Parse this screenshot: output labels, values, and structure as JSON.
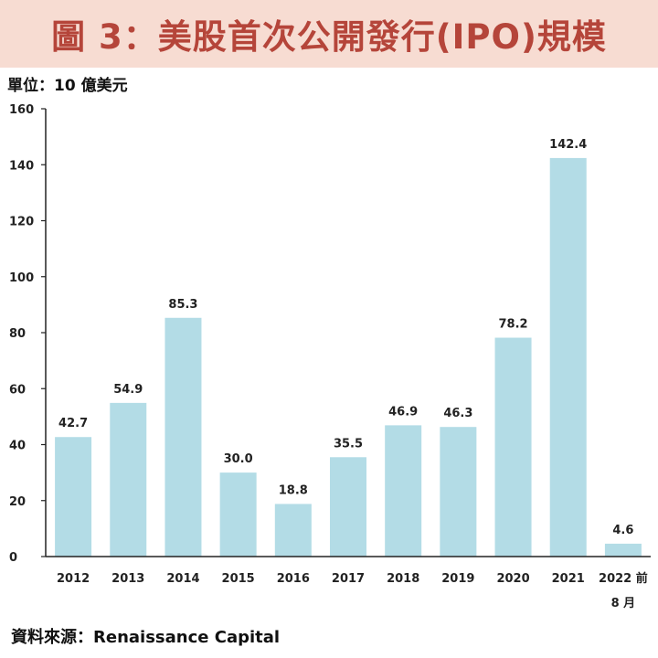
{
  "header": {
    "title": "圖 3：美股首次公開發行(IPO)規模"
  },
  "unit_label": "單位：10 億美元",
  "source_label": "資料來源：Renaissance Capital",
  "colors": {
    "bar": "#b3dce6",
    "banner_bg": "#f7dcd2",
    "banner_text": "#b5453a",
    "axis": "#222222"
  },
  "chart_data": {
    "type": "bar",
    "categories": [
      "2012",
      "2013",
      "2014",
      "2015",
      "2016",
      "2017",
      "2018",
      "2019",
      "2020",
      "2021",
      "2022 前\n8 月"
    ],
    "values": [
      42.7,
      54.9,
      85.3,
      30.0,
      18.8,
      35.5,
      46.9,
      46.3,
      78.2,
      142.4,
      4.6
    ],
    "value_labels": [
      "42.7",
      "54.9",
      "85.3",
      "30.0",
      "18.8",
      "35.5",
      "46.9",
      "46.3",
      "78.2",
      "142.4",
      "4.6"
    ],
    "ylim": [
      0,
      160
    ],
    "yticks": [
      0,
      20,
      40,
      60,
      80,
      100,
      120,
      140,
      160
    ],
    "title": "",
    "xlabel": "",
    "ylabel": "",
    "grid": false,
    "legend": "none"
  }
}
